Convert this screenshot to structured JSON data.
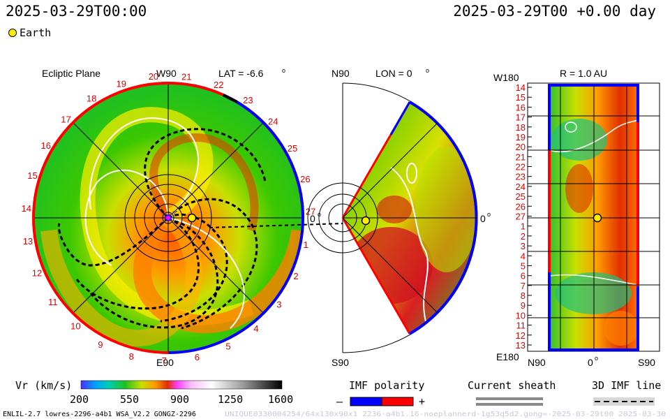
{
  "header": {
    "left_time": "2025-03-29T00:00",
    "right_time": "2025-03-29T00 +0.00 day"
  },
  "legend": {
    "earth_label": "Earth"
  },
  "panels": {
    "ecliptic": {
      "title": "Ecliptic Plane",
      "top_label": "W90",
      "bottom_label": "E90",
      "lat_label": "LAT = -6.6",
      "zero_label": "0",
      "rotation_numbers": [
        "20",
        "21",
        "22",
        "23",
        "24",
        "25",
        "26",
        "27",
        "1",
        "2",
        "3",
        "4",
        "5",
        "6",
        "7",
        "8",
        "9",
        "10",
        "11",
        "12",
        "13",
        "14",
        "15",
        "16",
        "17",
        "18",
        "19"
      ]
    },
    "meridional": {
      "top_label": "N90",
      "lon_label": "LON = 0",
      "bottom_label": "S90",
      "zero_label": "0"
    },
    "shell": {
      "r_label": "R = 1.0 AU",
      "top_left": "W180",
      "bottom_left": "E180",
      "y_ticks": [
        "14",
        "15",
        "16",
        "17",
        "18",
        "19",
        "20",
        "21",
        "22",
        "23",
        "24",
        "25",
        "26",
        "27",
        "1",
        "2",
        "3",
        "4",
        "5",
        "6",
        "7",
        "8",
        "9",
        "10",
        "11",
        "12",
        "13"
      ],
      "x_ticks": [
        "N90",
        "0",
        "S90"
      ]
    }
  },
  "colorbar": {
    "label": "Vr (km/s)",
    "ticks": [
      "200",
      "550",
      "900",
      "1250",
      "1600"
    ]
  },
  "imf_polarity": {
    "title": "IMF polarity",
    "minus": "–",
    "plus": "+",
    "neg_color": "#0000ff",
    "pos_color": "#ff0000"
  },
  "current_sheath": {
    "title": "Current sheath"
  },
  "imf_line": {
    "title": "3D IMF line"
  },
  "footer": {
    "left": "ENLIL-2.7 lowres-2296-a4b1 WSA_V2.2 GONGZ-2296",
    "right": "UNIQUE0330004254/64x130x90x1 2236-a4b1.16-noeplannerd-1g53q5d2.gong=-2025-03-29t00  2025-03-30"
  }
}
